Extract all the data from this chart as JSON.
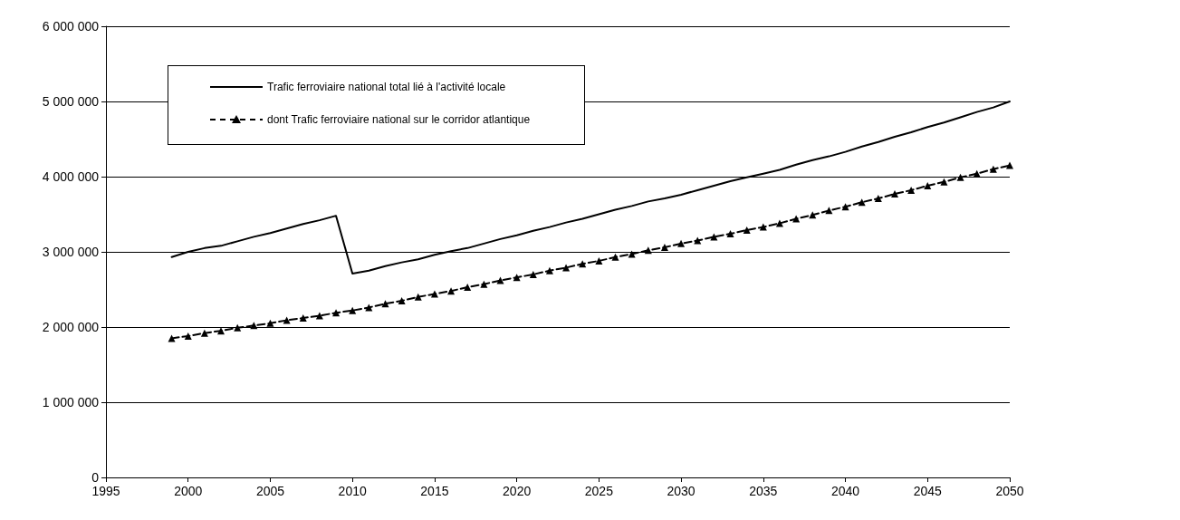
{
  "chart_data": {
    "type": "line",
    "x": [
      1999,
      2000,
      2001,
      2002,
      2003,
      2004,
      2005,
      2006,
      2007,
      2008,
      2009,
      2010,
      2011,
      2012,
      2013,
      2014,
      2015,
      2016,
      2017,
      2018,
      2019,
      2020,
      2021,
      2022,
      2023,
      2024,
      2025,
      2026,
      2027,
      2028,
      2029,
      2030,
      2031,
      2032,
      2033,
      2034,
      2035,
      2036,
      2037,
      2038,
      2039,
      2040,
      2041,
      2042,
      2043,
      2044,
      2045,
      2046,
      2047,
      2048,
      2049,
      2050
    ],
    "series": [
      {
        "name": "Trafic ferroviaire national total lié à l'activité locale",
        "color": "#000000",
        "marker": "none",
        "line_style": "solid",
        "values": [
          2930000,
          3000000,
          3050000,
          3080000,
          3140000,
          3200000,
          3250000,
          3310000,
          3370000,
          3420000,
          3480000,
          2710000,
          2750000,
          2810000,
          2860000,
          2900000,
          2960000,
          3010000,
          3050000,
          3110000,
          3170000,
          3220000,
          3280000,
          3330000,
          3390000,
          3440000,
          3500000,
          3560000,
          3610000,
          3670000,
          3710000,
          3760000,
          3820000,
          3880000,
          3940000,
          3990000,
          4040000,
          4090000,
          4160000,
          4220000,
          4270000,
          4330000,
          4400000,
          4460000,
          4530000,
          4590000,
          4660000,
          4720000,
          4790000,
          4860000,
          4920000,
          5000000
        ]
      },
      {
        "name": "dont Trafic ferroviaire national sur le corridor atlantique",
        "color": "#000000",
        "marker": "triangle",
        "line_style": "dashed",
        "values": [
          1850000,
          1880000,
          1920000,
          1950000,
          1990000,
          2020000,
          2050000,
          2090000,
          2120000,
          2150000,
          2190000,
          2220000,
          2260000,
          2310000,
          2350000,
          2400000,
          2440000,
          2480000,
          2530000,
          2570000,
          2620000,
          2660000,
          2700000,
          2750000,
          2790000,
          2840000,
          2880000,
          2930000,
          2970000,
          3020000,
          3060000,
          3110000,
          3150000,
          3200000,
          3240000,
          3290000,
          3330000,
          3380000,
          3440000,
          3490000,
          3550000,
          3600000,
          3660000,
          3710000,
          3770000,
          3820000,
          3880000,
          3930000,
          3990000,
          4040000,
          4100000,
          4150000
        ]
      }
    ],
    "xlim": [
      1995,
      2050
    ],
    "xticks": [
      1995,
      2000,
      2005,
      2010,
      2015,
      2020,
      2025,
      2030,
      2035,
      2040,
      2045,
      2050
    ],
    "ylim": [
      0,
      6000000
    ],
    "yticks": [
      0,
      {
        "value": 1000000,
        "label": "1 000 000"
      },
      {
        "value": 2000000,
        "label": "2 000 000"
      },
      {
        "value": 3000000,
        "label": "3 000 000"
      },
      {
        "value": 4000000,
        "label": "4 000 000"
      },
      {
        "value": 5000000,
        "label": "5 000 000"
      },
      {
        "value": 6000000,
        "label": "6 000 000"
      }
    ],
    "grid": "y",
    "legend": "top left"
  }
}
